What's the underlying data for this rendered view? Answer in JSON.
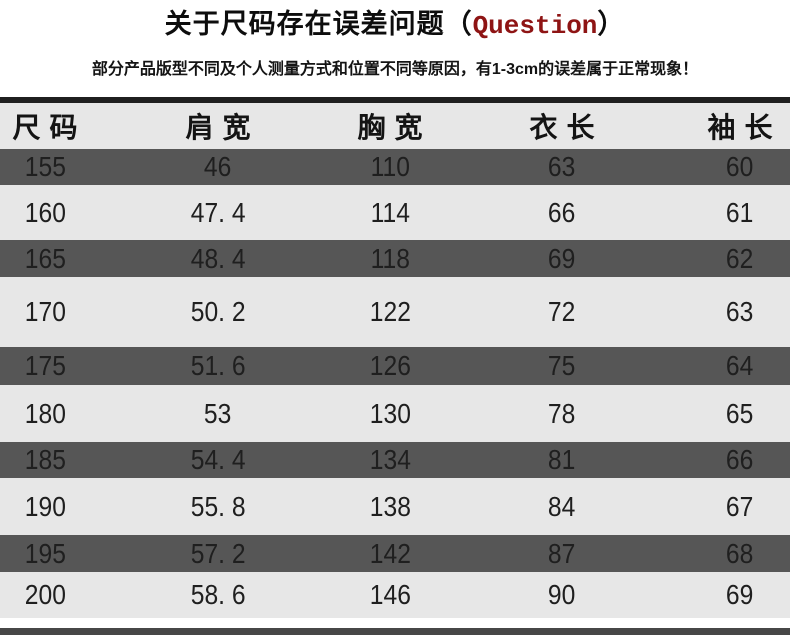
{
  "title": {
    "main": "关于尺码存在误差问题",
    "paren_open": "（",
    "question": "Question",
    "paren_close": "）"
  },
  "subtitle": "部分产品版型不同及个人测量方式和位置不同等原因，有1-3cm的误差属于正常现象！",
  "colors": {
    "question_accent": "#8e1414",
    "row_dark": "#565656",
    "row_light": "#e7e7e7",
    "top_rule": "#1f1f1f",
    "bottom_rule": "#474747"
  },
  "chart_data": {
    "type": "table",
    "title": "关于尺码存在误差问题（Question）",
    "columns": [
      "尺码",
      "肩宽",
      "胸宽",
      "衣长",
      "袖长"
    ],
    "rows": [
      [
        "155",
        "46",
        "110",
        "63",
        "60"
      ],
      [
        "160",
        "47. 4",
        "114",
        "66",
        "61"
      ],
      [
        "165",
        "48. 4",
        "118",
        "69",
        "62"
      ],
      [
        "170",
        "50. 2",
        "122",
        "72",
        "63"
      ],
      [
        "175",
        "51. 6",
        "126",
        "75",
        "64"
      ],
      [
        "180",
        "53",
        "130",
        "78",
        "65"
      ],
      [
        "185",
        "54. 4",
        "134",
        "81",
        "66"
      ],
      [
        "190",
        "55. 8",
        "138",
        "84",
        "67"
      ],
      [
        "195",
        "57. 2",
        "142",
        "87",
        "68"
      ],
      [
        "200",
        "58. 6",
        "146",
        "90",
        "69"
      ]
    ],
    "layout": {
      "row_shading": "alternating dark/light starting dark",
      "legend_position": "none",
      "grid": "off"
    }
  }
}
